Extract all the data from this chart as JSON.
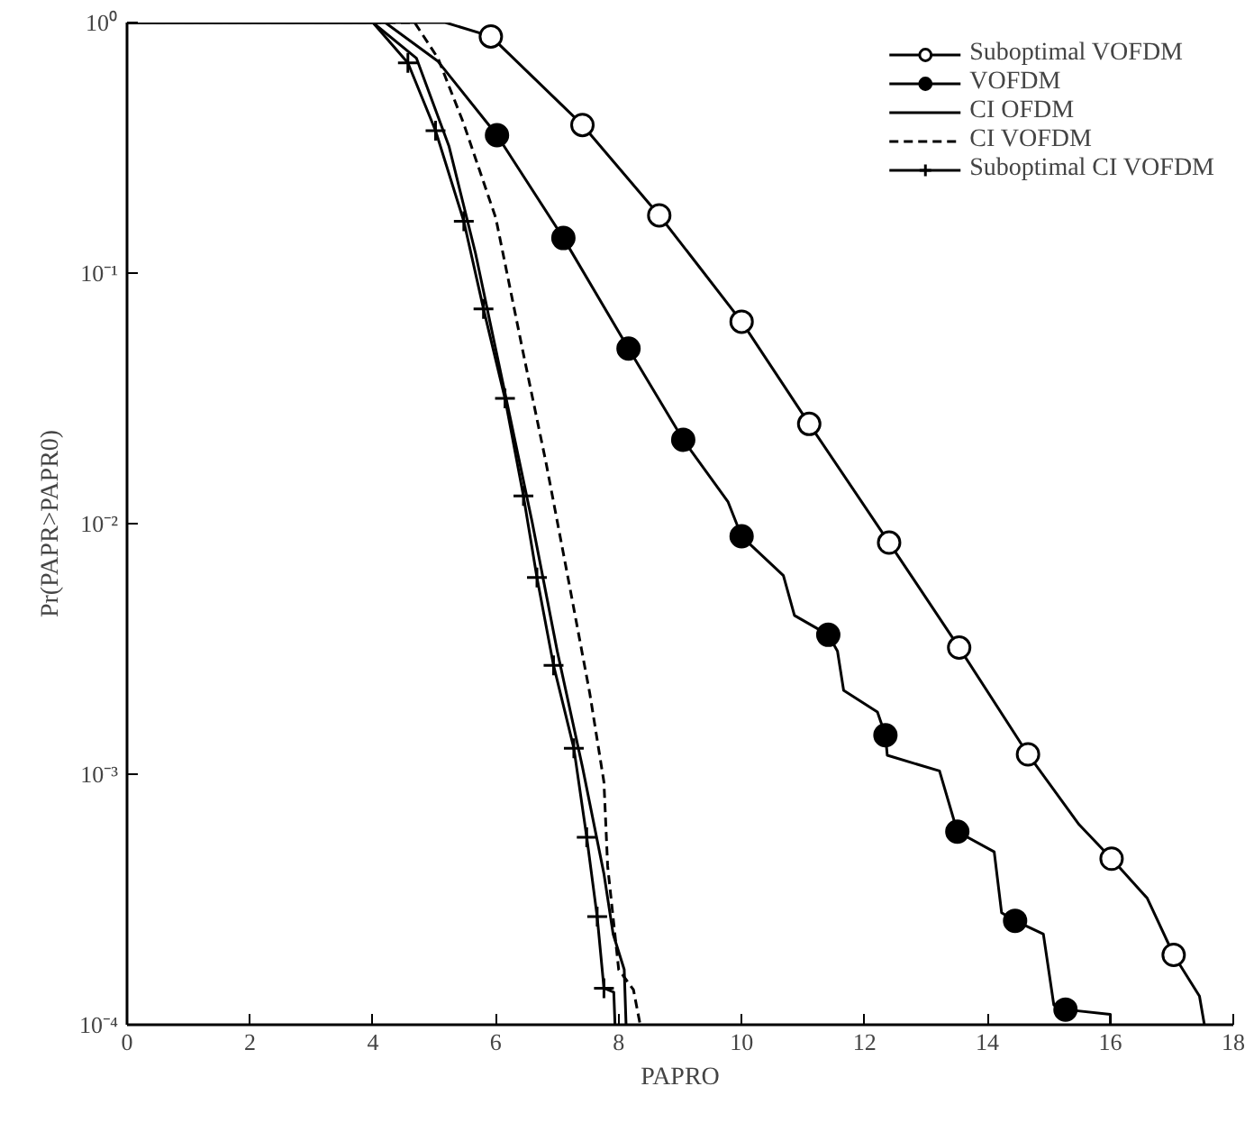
{
  "chart_data": {
    "type": "line",
    "xlabel": "PAPRO",
    "ylabel": "Pr(PAPR>PAPR0)",
    "log": "y",
    "grid": false,
    "legend": "top right",
    "xlim": [
      0,
      18
    ],
    "xticks": [
      0,
      2,
      4,
      6,
      8,
      10,
      12,
      14,
      16,
      18
    ],
    "ylim": [
      0.0001,
      1
    ],
    "yticks": [
      {
        "value": 0.0001,
        "label": "10⁻⁴"
      },
      {
        "value": 0.001,
        "label": "10⁻³"
      },
      {
        "value": 0.01,
        "label": "10⁻²"
      },
      {
        "value": 0.1,
        "label": "10⁻¹"
      },
      {
        "value": 1,
        "label": "10⁰"
      }
    ],
    "series": [
      {
        "name": "Suboptimal VOFDM",
        "color": "#000000",
        "line_style": "solid",
        "x": [
          0,
          5.18,
          5.92,
          7.41,
          8.66,
          9.31,
          10.0,
          11.1,
          12.4,
          13.54,
          14.66,
          15.49,
          16.02,
          16.6,
          17.03,
          17.45,
          17.53
        ],
        "values": [
          1,
          1,
          0.88,
          0.39,
          0.17,
          0.106,
          0.064,
          0.025,
          0.0084,
          0.0032,
          0.0012,
          0.00063,
          0.00046,
          0.00032,
          0.00019,
          0.00013,
          0.0001
        ]
      },
      {
        "type": "scatter",
        "marker": "circle",
        "color": "#ffffff",
        "x": [
          5.92,
          7.41,
          8.66,
          10.0,
          11.1,
          12.4,
          13.54,
          14.66,
          16.02,
          17.03
        ],
        "values": [
          0.88,
          0.39,
          0.17,
          0.064,
          0.025,
          0.0084,
          0.0032,
          0.0012,
          0.00046,
          0.00019
        ]
      },
      {
        "name": "VOFDM",
        "color": "#000000",
        "line_style": "solid",
        "x": [
          0,
          4.2,
          5.06,
          6.02,
          7.1,
          8.16,
          9.05,
          9.78,
          10.0,
          10.68,
          10.86,
          11.41,
          11.56,
          11.66,
          12.21,
          12.34,
          12.37,
          13.22,
          13.51,
          14.11,
          14.23,
          14.45,
          14.91,
          15.08,
          15.27,
          16.0,
          16.0
        ],
        "values": [
          1,
          1,
          0.7,
          0.355,
          0.138,
          0.05,
          0.0216,
          0.0122,
          0.0089,
          0.0062,
          0.0043,
          0.0036,
          0.0031,
          0.00216,
          0.00177,
          0.00143,
          0.00119,
          0.00103,
          0.00059,
          0.00049,
          0.00028,
          0.00026,
          0.00023,
          0.00012,
          0.000115,
          0.00011,
          0.0001
        ]
      },
      {
        "type": "scatter",
        "marker": "circle",
        "color": "#000000",
        "x": [
          6.02,
          7.1,
          8.16,
          9.05,
          10.0,
          11.41,
          12.34,
          13.51,
          14.45,
          15.27
        ],
        "values": [
          0.355,
          0.138,
          0.05,
          0.0216,
          0.0089,
          0.0036,
          0.00143,
          0.00059,
          0.00026,
          0.000115
        ]
      },
      {
        "name": "CI OFDM",
        "color": "#000000",
        "line_style": "solid",
        "x": [
          0,
          4.0,
          4.71,
          5.24,
          5.67,
          6.12,
          6.59,
          7.0,
          7.41,
          7.76,
          7.91,
          8.09,
          8.12
        ],
        "values": [
          1,
          1,
          0.72,
          0.32,
          0.12,
          0.036,
          0.0102,
          0.0031,
          0.00107,
          0.0004,
          0.00023,
          0.000166,
          0.0001
        ]
      },
      {
        "name": "CI VOFDM",
        "color": "#000000",
        "line_style": "dashed",
        "x": [
          0,
          4.68,
          5.06,
          5.47,
          6.0,
          6.47,
          6.82,
          7.18,
          7.53,
          7.76,
          7.82,
          8.0,
          8.24,
          8.35
        ],
        "values": [
          1,
          1,
          0.72,
          0.4,
          0.166,
          0.045,
          0.0174,
          0.006,
          0.0021,
          0.00093,
          0.00043,
          0.000166,
          0.000138,
          0.0001
        ]
      },
      {
        "name": "Suboptimal CI VOFDM",
        "color": "#000000",
        "line_style": "solid",
        "x": [
          0,
          4.0,
          4.57,
          5.02,
          5.48,
          5.8,
          6.15,
          6.45,
          6.67,
          6.94,
          7.27,
          7.48,
          7.65,
          7.76,
          7.92,
          7.94
        ],
        "values": [
          1,
          1,
          0.69,
          0.37,
          0.161,
          0.072,
          0.0316,
          0.0129,
          0.0061,
          0.00272,
          0.00127,
          0.00056,
          0.00027,
          0.00014,
          0.000135,
          0.0001
        ]
      },
      {
        "type": "scatter",
        "marker": "cross",
        "color": "#000000",
        "x": [
          4.57,
          5.02,
          5.48,
          5.8,
          6.15,
          6.45,
          6.67,
          6.94,
          7.27,
          7.48,
          7.65,
          7.76
        ],
        "values": [
          0.69,
          0.37,
          0.161,
          0.072,
          0.0316,
          0.0129,
          0.0061,
          0.00272,
          0.00127,
          0.00056,
          0.00027,
          0.00014
        ]
      }
    ]
  }
}
